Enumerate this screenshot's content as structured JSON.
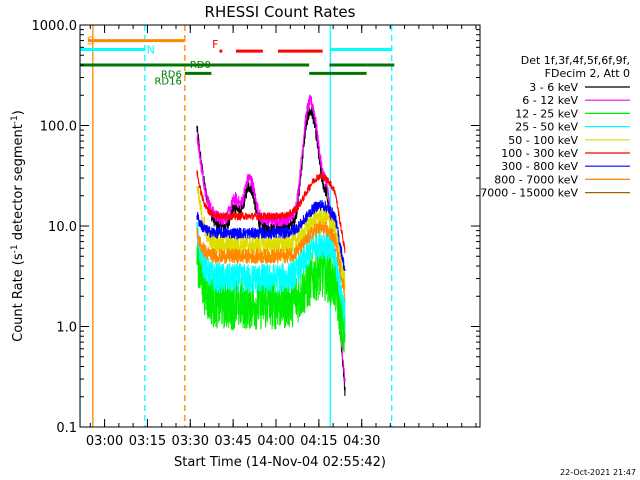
{
  "chart_data": {
    "type": "line",
    "title": "RHESSI Count Rates",
    "xlabel": "Start Time (14-Nov-04 02:55:42)",
    "ylabel_main": "Count Rate (s",
    "ylabel_sup1": "-1",
    "ylabel_mid": " detector segment",
    "ylabel_sup2": "-1",
    "ylabel_end": ")",
    "yscale": "log",
    "ylim": [
      0.1,
      1000
    ],
    "xlim_min": [
      -4.3,
      135.7
    ],
    "x_ticks": [
      {
        "min": 4.3,
        "label": "03:00"
      },
      {
        "min": 19.3,
        "label": "03:15"
      },
      {
        "min": 34.3,
        "label": "03:30"
      },
      {
        "min": 49.3,
        "label": "03:45"
      },
      {
        "min": 64.3,
        "label": "04:00"
      },
      {
        "min": 79.3,
        "label": "04:15"
      },
      {
        "min": 94.3,
        "label": "04:30"
      }
    ],
    "y_ticks": [
      {
        "value": 0.1,
        "label": "0.1"
      },
      {
        "value": 1,
        "label": "1.0"
      },
      {
        "value": 10,
        "label": "10.0"
      },
      {
        "value": 100,
        "label": "100.0"
      },
      {
        "value": 1000,
        "label": "1000.0"
      }
    ],
    "legend_header": [
      "Det 1f,3f,4f,5f,6f,9f,",
      "FDecim 2, Att 0"
    ],
    "legend_placement": "right",
    "series": [
      {
        "name": "3 - 6 keV",
        "color": "#000000",
        "base": 9.5,
        "bump": 1.4,
        "noise": 0.07,
        "peak": 95
      },
      {
        "name": "6 - 12 keV",
        "color": "#ff00ff",
        "base": 11.5,
        "bump": 1.5,
        "noise": 0.07,
        "peak": 85
      },
      {
        "name": "12 - 25 keV",
        "color": "#00ee00",
        "base": 1.7,
        "bump": 1.0,
        "noise": 0.28,
        "peak": 5.5
      },
      {
        "name": "25 - 50 keV",
        "color": "#00ffff",
        "base": 3.0,
        "bump": 1.3,
        "noise": 0.16,
        "peak": 9
      },
      {
        "name": "50 - 100 keV",
        "color": "#dddd00",
        "base": 6.5,
        "bump": 0.9,
        "noise": 0.1,
        "peak": 25
      },
      {
        "name": "100 - 300 keV",
        "color": "#ff0000",
        "base": 12.5,
        "bump": 1.5,
        "noise": 0.04,
        "peak": 35
      },
      {
        "name": "300 - 800 keV",
        "color": "#0000ff",
        "base": 8.5,
        "bump": 0.9,
        "noise": 0.06,
        "peak": 13
      },
      {
        "name": "800 - 7000 keV",
        "color": "#ff8800",
        "base": 5.0,
        "bump": 0.9,
        "noise": 0.08,
        "peak": 8.5
      },
      {
        "name": "7000 - 15000 keV",
        "color": "#996600",
        "base": 0,
        "bump": 0,
        "noise": 0,
        "peak": 0
      }
    ],
    "vlines": [
      {
        "min": -4.3,
        "color": "#00ffff",
        "dashed": false
      },
      {
        "min": 0.2,
        "color": "#ff8800",
        "dashed": false
      },
      {
        "min": 18.4,
        "color": "#00ffff",
        "dashed": true
      },
      {
        "min": 32.4,
        "color": "#ff8800",
        "dashed": true
      },
      {
        "min": 83.3,
        "color": "#00ffff",
        "dashed": false
      },
      {
        "min": 104.8,
        "color": "#00ffff",
        "dashed": true
      }
    ],
    "flag_bars": [
      {
        "label": "S",
        "color": "#ff8800",
        "y": 700,
        "segments": [
          [
            -1.5,
            32.4
          ]
        ]
      },
      {
        "label": "N",
        "color": "#00ffff",
        "y": 570,
        "segments": [
          [
            -4.3,
            18.4
          ],
          [
            83.3,
            104.8
          ]
        ]
      },
      {
        "label": "F",
        "color": "#ff0000",
        "y": 550,
        "segments": [
          [
            44.5,
            45.5
          ],
          [
            50.3,
            59.7
          ],
          [
            65.0,
            80.6
          ]
        ]
      },
      {
        "label": "",
        "color": "#007700",
        "y": 400,
        "segments": [
          [
            -4.3,
            75.9
          ],
          [
            83.0,
            96.0
          ],
          [
            96.0,
            105.7
          ]
        ]
      },
      {
        "label": "",
        "color": "#007700",
        "y": 330,
        "segments": [
          [
            32.4,
            41.7
          ],
          [
            75.9,
            96.0
          ]
        ]
      }
    ],
    "level_labels": [
      {
        "label": "RD0",
        "color": "#007700",
        "y": 400
      },
      {
        "label": "RD6",
        "color": "#007700",
        "y": 330
      },
      {
        "label": "RD16",
        "color": "#007700",
        "y": 280
      }
    ],
    "data_start_min": 36.6,
    "data_end_min": 88.5
  },
  "footer": {
    "timestamp": "22-Oct-2021 21:47"
  }
}
